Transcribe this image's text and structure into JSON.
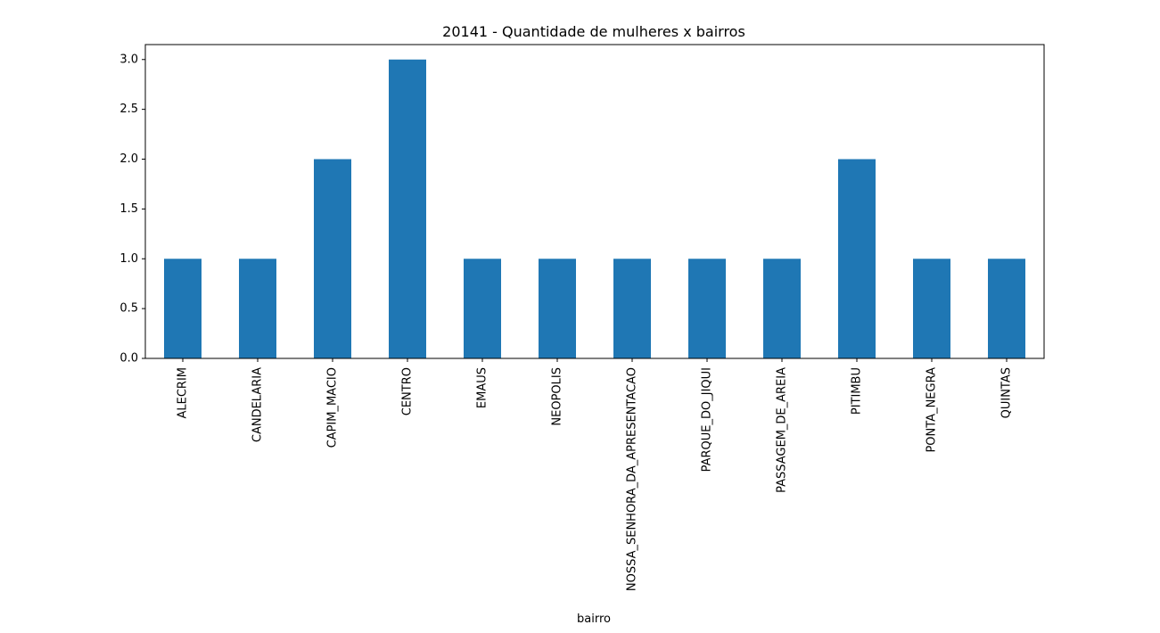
{
  "chart_data": {
    "type": "bar",
    "title": "20141 - Quantidade de mulheres x bairros",
    "xlabel": "bairro",
    "ylabel": "",
    "categories": [
      "ALECRIM",
      "CANDELARIA",
      "CAPIM_MACIO",
      "CENTRO",
      "EMAUS",
      "NEOPOLIS",
      "NOSSA_SENHORA_DA_APRESENTACAO",
      "PARQUE_DO_JIQUI",
      "PASSAGEM_DE_AREIA",
      "PITIMBU",
      "PONTA_NEGRA",
      "QUINTAS"
    ],
    "values": [
      1,
      1,
      2,
      3,
      1,
      1,
      1,
      1,
      1,
      2,
      1,
      1
    ],
    "ylim": [
      0,
      3.15
    ],
    "yticks": [
      "0.0",
      "0.5",
      "1.0",
      "1.5",
      "2.0",
      "2.5",
      "3.0"
    ],
    "grid": false,
    "legend": false,
    "bar_color": "#1f77b4"
  }
}
